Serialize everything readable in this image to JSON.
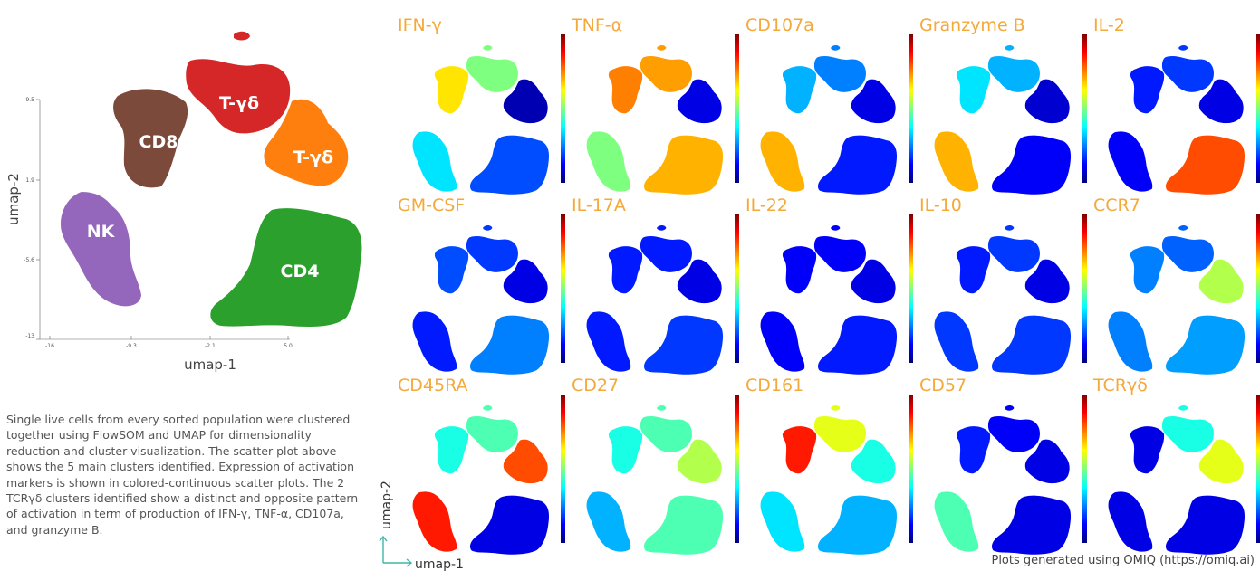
{
  "main_plot": {
    "xlabel": "umap-1",
    "ylabel": "umap-2",
    "x_ticks": [
      "-16",
      "-9.3",
      "-2.1",
      "5.0"
    ],
    "y_ticks": [
      "9.5",
      "1.9",
      "-5.6",
      "-13"
    ],
    "clusters": [
      {
        "id": "cd8",
        "label": "CD8",
        "color": "#7b4a3a"
      },
      {
        "id": "tgd1",
        "label": "T-γδ",
        "color": "#d62728"
      },
      {
        "id": "tgd2",
        "label": "T-γδ",
        "color": "#ff7f0e"
      },
      {
        "id": "nk",
        "label": "NK",
        "color": "#9467bd"
      },
      {
        "id": "cd4",
        "label": "CD4",
        "color": "#2ca02c"
      }
    ]
  },
  "caption": "Single live cells from every sorted population were clustered together using FlowSOM and UMAP for dimensionality reduction and cluster visualization. The scatter plot above shows the 5 main clusters identified. Expression of activation markers is shown in colored-continuous scatter plots. The 2 TCRγδ clusters identified show a distinct and opposite pattern of activation in term of production of IFN-γ, TNF-α, CD107a, and granzyme B.",
  "marker_panels": {
    "corner_xlabel": "umap-1",
    "corner_ylabel": "umap-2",
    "colormap": [
      "#00007f",
      "#0000ff",
      "#007fff",
      "#00ffff",
      "#7fff7f",
      "#ffff00",
      "#ff7f00",
      "#ff0000",
      "#7f0000"
    ],
    "markers": [
      {
        "name": "IFN-γ",
        "cd8": 0.65,
        "tgd1": 0.5,
        "tgd2": 0.05,
        "nk": 0.35,
        "cd4": 0.2
      },
      {
        "name": "TNF-α",
        "cd8": 0.75,
        "tgd1": 0.72,
        "tgd2": 0.1,
        "nk": 0.5,
        "cd4": 0.7
      },
      {
        "name": "CD107a",
        "cd8": 0.3,
        "tgd1": 0.25,
        "tgd2": 0.1,
        "nk": 0.7,
        "cd4": 0.15
      },
      {
        "name": "Granzyme B",
        "cd8": 0.35,
        "tgd1": 0.3,
        "tgd2": 0.08,
        "nk": 0.7,
        "cd4": 0.12
      },
      {
        "name": "IL-2",
        "cd8": 0.15,
        "tgd1": 0.18,
        "tgd2": 0.1,
        "nk": 0.12,
        "cd4": 0.8
      },
      {
        "name": "GM-CSF",
        "cd8": 0.2,
        "tgd1": 0.18,
        "tgd2": 0.1,
        "nk": 0.15,
        "cd4": 0.25
      },
      {
        "name": "IL-17A",
        "cd8": 0.15,
        "tgd1": 0.15,
        "tgd2": 0.1,
        "nk": 0.15,
        "cd4": 0.18
      },
      {
        "name": "IL-22",
        "cd8": 0.12,
        "tgd1": 0.12,
        "tgd2": 0.1,
        "nk": 0.12,
        "cd4": 0.15
      },
      {
        "name": "IL-10",
        "cd8": 0.15,
        "tgd1": 0.18,
        "tgd2": 0.1,
        "nk": 0.18,
        "cd4": 0.18
      },
      {
        "name": "CCR7",
        "cd8": 0.25,
        "tgd1": 0.22,
        "tgd2": 0.55,
        "nk": 0.25,
        "cd4": 0.28
      },
      {
        "name": "CD45RA",
        "cd8": 0.4,
        "tgd1": 0.45,
        "tgd2": 0.8,
        "nk": 0.85,
        "cd4": 0.1
      },
      {
        "name": "CD27",
        "cd8": 0.4,
        "tgd1": 0.45,
        "tgd2": 0.55,
        "nk": 0.3,
        "cd4": 0.45
      },
      {
        "name": "CD161",
        "cd8": 0.85,
        "tgd1": 0.6,
        "tgd2": 0.4,
        "nk": 0.35,
        "cd4": 0.3
      },
      {
        "name": "CD57",
        "cd8": 0.15,
        "tgd1": 0.12,
        "tgd2": 0.1,
        "nk": 0.45,
        "cd4": 0.1
      },
      {
        "name": "TCRγδ",
        "cd8": 0.1,
        "tgd1": 0.4,
        "tgd2": 0.6,
        "nk": 0.1,
        "cd4": 0.1
      }
    ]
  },
  "footer_note": "Plots generated using OMIQ (https://omiq.ai)"
}
